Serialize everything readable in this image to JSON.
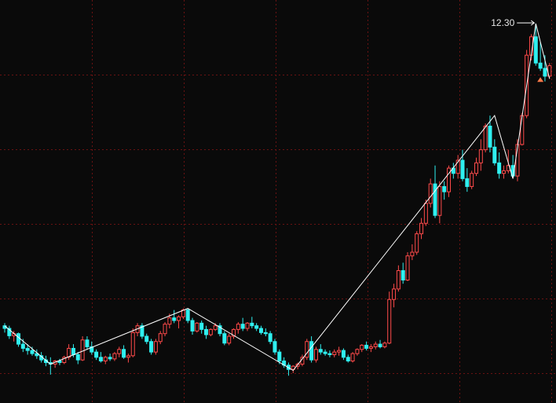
{
  "chart_data": {
    "type": "candlestick",
    "style": {
      "background": "#0a0a0a",
      "grid_color": "#6a1212",
      "up_color": "#ff4a4a",
      "down_color": "#2ff0f0",
      "zigzag_color": "#ffffff",
      "marker_color": "#ff7a4a"
    },
    "ylim": [
      5.08,
      12.75
    ],
    "grid": {
      "rows": 5,
      "cols": 6,
      "style": "dotted"
    },
    "annotation": {
      "text": "12.30",
      "at_index": 116,
      "value": 12.3
    },
    "zigzag": [
      {
        "i": 0,
        "v": 6.55
      },
      {
        "i": 10,
        "v": 5.82
      },
      {
        "i": 40,
        "v": 6.88
      },
      {
        "i": 63,
        "v": 5.7
      },
      {
        "i": 107,
        "v": 10.55
      },
      {
        "i": 111,
        "v": 9.35
      },
      {
        "i": 116,
        "v": 12.3
      },
      {
        "i": 119,
        "v": 11.25
      }
    ],
    "candles": [
      [
        6.55,
        6.6,
        6.42,
        6.5
      ],
      [
        6.5,
        6.55,
        6.3,
        6.36
      ],
      [
        6.36,
        6.45,
        6.25,
        6.4
      ],
      [
        6.4,
        6.42,
        6.15,
        6.2
      ],
      [
        6.2,
        6.3,
        6.05,
        6.12
      ],
      [
        6.12,
        6.2,
        6.0,
        6.08
      ],
      [
        6.08,
        6.15,
        5.98,
        6.02
      ],
      [
        6.02,
        6.1,
        5.92,
        5.98
      ],
      [
        5.98,
        6.05,
        5.85,
        5.9
      ],
      [
        5.9,
        5.98,
        5.78,
        5.85
      ],
      [
        5.85,
        5.95,
        5.62,
        5.82
      ],
      [
        5.82,
        5.9,
        5.75,
        5.88
      ],
      [
        5.88,
        5.92,
        5.8,
        5.85
      ],
      [
        5.85,
        5.98,
        5.82,
        5.95
      ],
      [
        5.95,
        6.2,
        5.9,
        6.12
      ],
      [
        6.12,
        6.2,
        5.95,
        6.0
      ],
      [
        6.0,
        6.05,
        5.82,
        5.9
      ],
      [
        5.9,
        6.35,
        5.88,
        6.28
      ],
      [
        6.28,
        6.35,
        6.1,
        6.15
      ],
      [
        6.15,
        6.25,
        6.0,
        6.05
      ],
      [
        6.05,
        6.1,
        5.9,
        5.95
      ],
      [
        5.95,
        6.05,
        5.85,
        5.88
      ],
      [
        5.88,
        5.98,
        5.82,
        5.95
      ],
      [
        5.95,
        6.02,
        5.88,
        5.92
      ],
      [
        5.92,
        6.05,
        5.88,
        6.02
      ],
      [
        6.02,
        6.15,
        5.95,
        6.1
      ],
      [
        6.1,
        6.18,
        5.92,
        5.95
      ],
      [
        5.95,
        6.02,
        5.85,
        5.98
      ],
      [
        5.98,
        6.5,
        5.95,
        6.42
      ],
      [
        6.42,
        6.6,
        6.35,
        6.55
      ],
      [
        6.55,
        6.6,
        6.3,
        6.35
      ],
      [
        6.35,
        6.4,
        6.2,
        6.25
      ],
      [
        6.25,
        6.3,
        6.0,
        6.05
      ],
      [
        6.05,
        6.3,
        6.0,
        6.25
      ],
      [
        6.25,
        6.45,
        6.2,
        6.4
      ],
      [
        6.4,
        6.62,
        6.35,
        6.58
      ],
      [
        6.58,
        6.78,
        6.5,
        6.7
      ],
      [
        6.7,
        6.85,
        6.6,
        6.65
      ],
      [
        6.65,
        6.75,
        6.5,
        6.72
      ],
      [
        6.72,
        6.88,
        6.68,
        6.85
      ],
      [
        6.85,
        6.88,
        6.6,
        6.65
      ],
      [
        6.65,
        6.7,
        6.38,
        6.45
      ],
      [
        6.45,
        6.62,
        6.42,
        6.6
      ],
      [
        6.6,
        6.65,
        6.4,
        6.48
      ],
      [
        6.48,
        6.55,
        6.3,
        6.38
      ],
      [
        6.38,
        6.5,
        6.35,
        6.48
      ],
      [
        6.48,
        6.6,
        6.45,
        6.55
      ],
      [
        6.55,
        6.6,
        6.35,
        6.4
      ],
      [
        6.4,
        6.45,
        6.18,
        6.22
      ],
      [
        6.22,
        6.4,
        6.18,
        6.35
      ],
      [
        6.35,
        6.5,
        6.3,
        6.48
      ],
      [
        6.48,
        6.62,
        6.4,
        6.58
      ],
      [
        6.58,
        6.7,
        6.45,
        6.5
      ],
      [
        6.5,
        6.62,
        6.45,
        6.6
      ],
      [
        6.6,
        6.72,
        6.5,
        6.55
      ],
      [
        6.55,
        6.6,
        6.45,
        6.5
      ],
      [
        6.5,
        6.55,
        6.38,
        6.42
      ],
      [
        6.42,
        6.5,
        6.35,
        6.4
      ],
      [
        6.4,
        6.45,
        6.2,
        6.25
      ],
      [
        6.25,
        6.3,
        6.0,
        6.05
      ],
      [
        6.05,
        6.1,
        5.82,
        5.88
      ],
      [
        5.88,
        5.95,
        5.75,
        5.8
      ],
      [
        5.8,
        5.85,
        5.6,
        5.72
      ],
      [
        5.72,
        5.8,
        5.65,
        5.78
      ],
      [
        5.78,
        5.85,
        5.72,
        5.82
      ],
      [
        5.82,
        6.0,
        5.78,
        5.95
      ],
      [
        5.95,
        6.3,
        5.9,
        6.25
      ],
      [
        6.25,
        6.35,
        5.85,
        5.9
      ],
      [
        5.9,
        6.15,
        5.85,
        6.1
      ],
      [
        6.1,
        6.2,
        6.0,
        6.05
      ],
      [
        6.05,
        6.1,
        5.98,
        6.02
      ],
      [
        6.02,
        6.08,
        5.95,
        6.0
      ],
      [
        6.0,
        6.1,
        5.95,
        6.05
      ],
      [
        6.05,
        6.15,
        5.98,
        6.08
      ],
      [
        6.08,
        6.12,
        5.9,
        5.95
      ],
      [
        5.95,
        6.0,
        5.85,
        5.88
      ],
      [
        5.88,
        6.05,
        5.85,
        6.02
      ],
      [
        6.02,
        6.12,
        5.98,
        6.1
      ],
      [
        6.1,
        6.2,
        6.05,
        6.18
      ],
      [
        6.18,
        6.25,
        6.08,
        6.12
      ],
      [
        6.12,
        6.2,
        6.05,
        6.15
      ],
      [
        6.15,
        6.25,
        6.1,
        6.2
      ],
      [
        6.2,
        6.28,
        6.12,
        6.15
      ],
      [
        6.15,
        6.25,
        6.12,
        6.22
      ],
      [
        6.22,
        7.2,
        6.2,
        7.05
      ],
      [
        7.05,
        7.35,
        6.9,
        7.25
      ],
      [
        7.25,
        7.7,
        7.2,
        7.6
      ],
      [
        7.6,
        7.75,
        7.35,
        7.42
      ],
      [
        7.42,
        7.95,
        7.4,
        7.88
      ],
      [
        7.88,
        8.1,
        7.8,
        7.95
      ],
      [
        7.95,
        8.35,
        7.9,
        8.3
      ],
      [
        8.3,
        8.6,
        8.2,
        8.5
      ],
      [
        8.5,
        8.95,
        8.45,
        8.88
      ],
      [
        8.88,
        9.35,
        8.8,
        9.25
      ],
      [
        9.25,
        9.6,
        8.6,
        8.65
      ],
      [
        8.65,
        9.3,
        8.5,
        9.2
      ],
      [
        9.2,
        9.3,
        8.95,
        9.1
      ],
      [
        9.1,
        9.6,
        9.0,
        9.55
      ],
      [
        9.55,
        9.65,
        9.35,
        9.45
      ],
      [
        9.45,
        9.8,
        9.35,
        9.7
      ],
      [
        9.7,
        9.9,
        9.3,
        9.35
      ],
      [
        9.35,
        9.55,
        9.1,
        9.2
      ],
      [
        9.2,
        9.5,
        9.15,
        9.45
      ],
      [
        9.45,
        9.75,
        9.4,
        9.65
      ],
      [
        9.65,
        10.1,
        9.5,
        9.9
      ],
      [
        9.9,
        10.4,
        9.85,
        10.35
      ],
      [
        10.35,
        10.55,
        9.85,
        9.95
      ],
      [
        9.95,
        10.1,
        9.6,
        9.65
      ],
      [
        9.65,
        9.85,
        9.35,
        9.45
      ],
      [
        9.45,
        9.6,
        9.35,
        9.5
      ],
      [
        9.5,
        9.9,
        9.45,
        9.6
      ],
      [
        9.6,
        9.8,
        9.35,
        9.4
      ],
      [
        9.4,
        10.1,
        9.3,
        10.0
      ],
      [
        10.0,
        10.6,
        9.98,
        10.55
      ],
      [
        10.55,
        11.8,
        10.5,
        11.7
      ],
      [
        11.7,
        12.1,
        11.6,
        12.05
      ],
      [
        12.05,
        12.3,
        11.5,
        11.55
      ],
      [
        11.55,
        11.95,
        11.4,
        11.45
      ],
      [
        11.45,
        11.7,
        11.2,
        11.3
      ],
      [
        11.3,
        11.55,
        11.25,
        11.5
      ]
    ]
  }
}
